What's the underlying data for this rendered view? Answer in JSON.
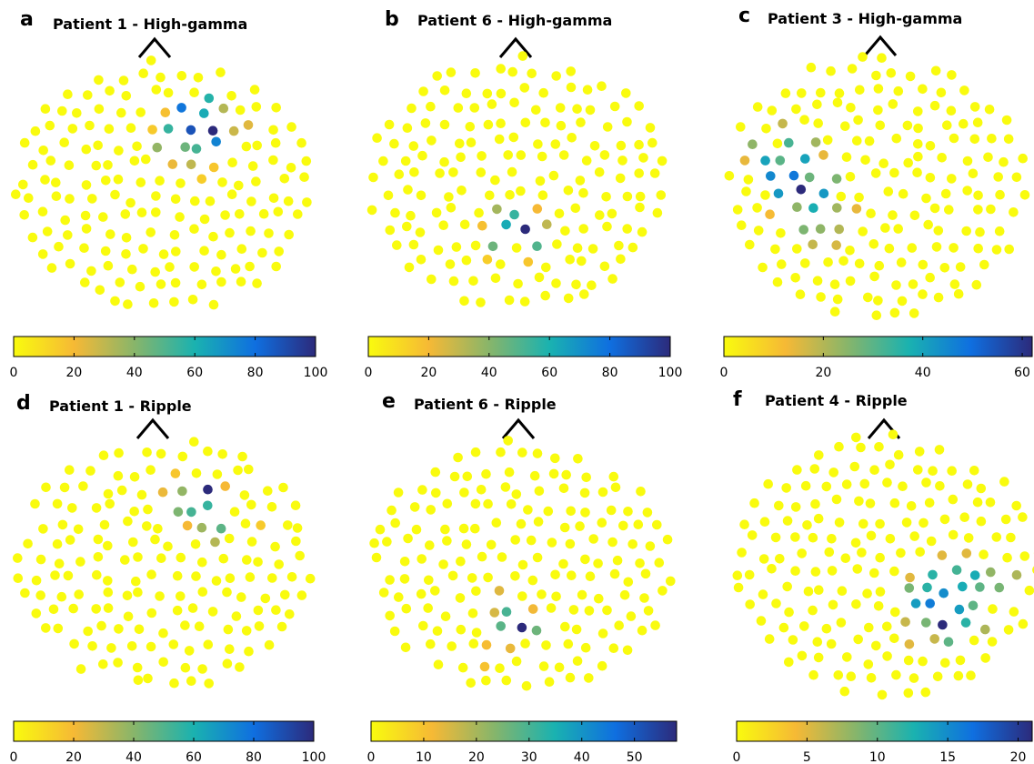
{
  "colormap": [
    "#f9fb0e",
    "#f6b935",
    "#88b56a",
    "#1ab2b0",
    "#0f6fe0",
    "#2c2a7b"
  ],
  "chart_data": [
    {
      "id": "a",
      "type": "scatter",
      "letter": "a",
      "title": "Patient 1 - High-gamma",
      "colorbar": {
        "min": 0,
        "max": 100,
        "ticks": [
          0,
          20,
          40,
          60,
          80,
          100
        ]
      },
      "description": "Topographic electrode map; electrodes mostly at 0, with a focal cluster of high values in the upper-right region.",
      "hotspots": [
        {
          "x": 0.63,
          "y": 0.27,
          "value": 100
        },
        {
          "x": 0.6,
          "y": 0.3,
          "value": 88
        },
        {
          "x": 0.57,
          "y": 0.25,
          "value": 78
        },
        {
          "x": 0.65,
          "y": 0.31,
          "value": 74
        },
        {
          "x": 0.59,
          "y": 0.2,
          "value": 62
        },
        {
          "x": 0.62,
          "y": 0.22,
          "value": 58
        },
        {
          "x": 0.56,
          "y": 0.29,
          "value": 55
        },
        {
          "x": 0.64,
          "y": 0.36,
          "value": 52
        },
        {
          "x": 0.58,
          "y": 0.34,
          "value": 45
        },
        {
          "x": 0.53,
          "y": 0.31,
          "value": 38
        },
        {
          "x": 0.67,
          "y": 0.25,
          "value": 32
        },
        {
          "x": 0.61,
          "y": 0.4,
          "value": 30
        },
        {
          "x": 0.7,
          "y": 0.33,
          "value": 28
        },
        {
          "x": 0.55,
          "y": 0.37,
          "value": 22
        },
        {
          "x": 0.52,
          "y": 0.24,
          "value": 18
        },
        {
          "x": 0.66,
          "y": 0.41,
          "value": 16
        },
        {
          "x": 0.73,
          "y": 0.27,
          "value": 24
        },
        {
          "x": 0.5,
          "y": 0.28,
          "value": 15
        },
        {
          "x": 0.58,
          "y": 0.42,
          "value": 14
        }
      ]
    },
    {
      "id": "b",
      "type": "scatter",
      "letter": "b",
      "title": "Patient 6 - High-gamma",
      "colorbar": {
        "min": 0,
        "max": 100,
        "ticks": [
          0,
          20,
          40,
          60,
          80,
          100
        ]
      },
      "description": "Topographic electrode map; mostly 0 with a focal hotspot in the lower-center region.",
      "hotspots": [
        {
          "x": 0.5,
          "y": 0.71,
          "value": 100
        },
        {
          "x": 0.47,
          "y": 0.69,
          "value": 62
        },
        {
          "x": 0.48,
          "y": 0.66,
          "value": 55
        },
        {
          "x": 0.53,
          "y": 0.73,
          "value": 50
        },
        {
          "x": 0.45,
          "y": 0.72,
          "value": 45
        },
        {
          "x": 0.44,
          "y": 0.67,
          "value": 35
        },
        {
          "x": 0.55,
          "y": 0.69,
          "value": 30
        },
        {
          "x": 0.52,
          "y": 0.64,
          "value": 20
        },
        {
          "x": 0.42,
          "y": 0.7,
          "value": 18
        },
        {
          "x": 0.56,
          "y": 0.75,
          "value": 16
        },
        {
          "x": 0.4,
          "y": 0.8,
          "value": 14
        }
      ]
    },
    {
      "id": "c",
      "type": "scatter",
      "letter": "c",
      "title": "Patient 3 - High-gamma",
      "colorbar": {
        "min": 0,
        "max": 62,
        "ticks": [
          0,
          20,
          40,
          60
        ]
      },
      "description": "Topographic electrode map; broad spread of elevated values on the left half, peak on the mid-left.",
      "hotspots": [
        {
          "x": 0.27,
          "y": 0.52,
          "value": 62
        },
        {
          "x": 0.24,
          "y": 0.43,
          "value": 48
        },
        {
          "x": 0.21,
          "y": 0.47,
          "value": 45
        },
        {
          "x": 0.31,
          "y": 0.52,
          "value": 42
        },
        {
          "x": 0.23,
          "y": 0.39,
          "value": 40
        },
        {
          "x": 0.2,
          "y": 0.51,
          "value": 42
        },
        {
          "x": 0.16,
          "y": 0.45,
          "value": 40
        },
        {
          "x": 0.29,
          "y": 0.55,
          "value": 38
        },
        {
          "x": 0.16,
          "y": 0.38,
          "value": 30
        },
        {
          "x": 0.2,
          "y": 0.37,
          "value": 32
        },
        {
          "x": 0.27,
          "y": 0.44,
          "value": 28
        },
        {
          "x": 0.31,
          "y": 0.46,
          "value": 26
        },
        {
          "x": 0.12,
          "y": 0.33,
          "value": 24
        },
        {
          "x": 0.24,
          "y": 0.33,
          "value": 22
        },
        {
          "x": 0.33,
          "y": 0.58,
          "value": 22
        },
        {
          "x": 0.27,
          "y": 0.58,
          "value": 24
        },
        {
          "x": 0.22,
          "y": 0.61,
          "value": 26
        },
        {
          "x": 0.35,
          "y": 0.62,
          "value": 20
        },
        {
          "x": 0.3,
          "y": 0.64,
          "value": 24
        },
        {
          "x": 0.18,
          "y": 0.29,
          "value": 18
        },
        {
          "x": 0.1,
          "y": 0.41,
          "value": 14
        },
        {
          "x": 0.38,
          "y": 0.66,
          "value": 16
        },
        {
          "x": 0.26,
          "y": 0.67,
          "value": 18
        },
        {
          "x": 0.41,
          "y": 0.56,
          "value": 14
        },
        {
          "x": 0.34,
          "y": 0.4,
          "value": 14
        },
        {
          "x": 0.15,
          "y": 0.57,
          "value": 12
        }
      ]
    },
    {
      "id": "d",
      "type": "scatter",
      "letter": "d",
      "title": "Patient 1 - Ripple",
      "colorbar": {
        "min": 0,
        "max": 100,
        "ticks": [
          0,
          20,
          40,
          60,
          80,
          100
        ]
      },
      "description": "Topographic electrode map; mostly 0 with a focal hotspot in the upper-right region.",
      "hotspots": [
        {
          "x": 0.62,
          "y": 0.23,
          "value": 100
        },
        {
          "x": 0.62,
          "y": 0.29,
          "value": 55
        },
        {
          "x": 0.65,
          "y": 0.27,
          "value": 52
        },
        {
          "x": 0.66,
          "y": 0.35,
          "value": 48
        },
        {
          "x": 0.59,
          "y": 0.26,
          "value": 42
        },
        {
          "x": 0.58,
          "y": 0.21,
          "value": 38
        },
        {
          "x": 0.63,
          "y": 0.34,
          "value": 36
        },
        {
          "x": 0.66,
          "y": 0.38,
          "value": 32
        },
        {
          "x": 0.56,
          "y": 0.25,
          "value": 22
        },
        {
          "x": 0.65,
          "y": 0.2,
          "value": 20
        },
        {
          "x": 0.58,
          "y": 0.29,
          "value": 20
        },
        {
          "x": 0.56,
          "y": 0.16,
          "value": 16
        },
        {
          "x": 0.8,
          "y": 0.32,
          "value": 15
        }
      ]
    },
    {
      "id": "e",
      "type": "scatter",
      "letter": "e",
      "title": "Patient 6 - Ripple",
      "colorbar": {
        "min": 0,
        "max": 58,
        "ticks": [
          0,
          10,
          20,
          30,
          40,
          50
        ]
      },
      "description": "Topographic electrode map; mostly 0 with a small focal hotspot in the lower-center region.",
      "hotspots": [
        {
          "x": 0.49,
          "y": 0.71,
          "value": 58
        },
        {
          "x": 0.47,
          "y": 0.67,
          "value": 30
        },
        {
          "x": 0.44,
          "y": 0.7,
          "value": 28
        },
        {
          "x": 0.51,
          "y": 0.74,
          "value": 26
        },
        {
          "x": 0.45,
          "y": 0.66,
          "value": 15
        },
        {
          "x": 0.42,
          "y": 0.68,
          "value": 14
        },
        {
          "x": 0.46,
          "y": 0.74,
          "value": 13
        },
        {
          "x": 0.51,
          "y": 0.66,
          "value": 12
        },
        {
          "x": 0.42,
          "y": 0.75,
          "value": 11
        },
        {
          "x": 0.4,
          "y": 0.84,
          "value": 10
        }
      ]
    },
    {
      "id": "f",
      "type": "scatter",
      "letter": "f",
      "title": "Patient 4 - Ripple",
      "colorbar": {
        "min": 0,
        "max": 21,
        "ticks": [
          0,
          5,
          10,
          15,
          20
        ]
      },
      "description": "Topographic electrode map; mostly 0 with a wide hotspot on the lower right side.",
      "hotspots": [
        {
          "x": 0.69,
          "y": 0.7,
          "value": 21
        },
        {
          "x": 0.66,
          "y": 0.68,
          "value": 16
        },
        {
          "x": 0.67,
          "y": 0.62,
          "value": 15
        },
        {
          "x": 0.71,
          "y": 0.67,
          "value": 14
        },
        {
          "x": 0.64,
          "y": 0.64,
          "value": 14
        },
        {
          "x": 0.72,
          "y": 0.6,
          "value": 13
        },
        {
          "x": 0.79,
          "y": 0.51,
          "value": 13
        },
        {
          "x": 0.72,
          "y": 0.73,
          "value": 12
        },
        {
          "x": 0.66,
          "y": 0.57,
          "value": 12
        },
        {
          "x": 0.75,
          "y": 0.56,
          "value": 11
        },
        {
          "x": 0.69,
          "y": 0.54,
          "value": 12
        },
        {
          "x": 0.7,
          "y": 0.76,
          "value": 10
        },
        {
          "x": 0.75,
          "y": 0.64,
          "value": 10
        },
        {
          "x": 0.62,
          "y": 0.7,
          "value": 9
        },
        {
          "x": 0.63,
          "y": 0.58,
          "value": 9
        },
        {
          "x": 0.83,
          "y": 0.58,
          "value": 10
        },
        {
          "x": 0.84,
          "y": 0.61,
          "value": 9
        },
        {
          "x": 0.82,
          "y": 0.51,
          "value": 8
        },
        {
          "x": 0.88,
          "y": 0.57,
          "value": 7
        },
        {
          "x": 0.76,
          "y": 0.7,
          "value": 7
        },
        {
          "x": 0.67,
          "y": 0.79,
          "value": 6
        },
        {
          "x": 0.61,
          "y": 0.66,
          "value": 6
        },
        {
          "x": 0.6,
          "y": 0.73,
          "value": 5
        },
        {
          "x": 0.71,
          "y": 0.49,
          "value": 5
        },
        {
          "x": 0.76,
          "y": 0.47,
          "value": 5
        },
        {
          "x": 0.61,
          "y": 0.61,
          "value": 5
        }
      ]
    }
  ]
}
